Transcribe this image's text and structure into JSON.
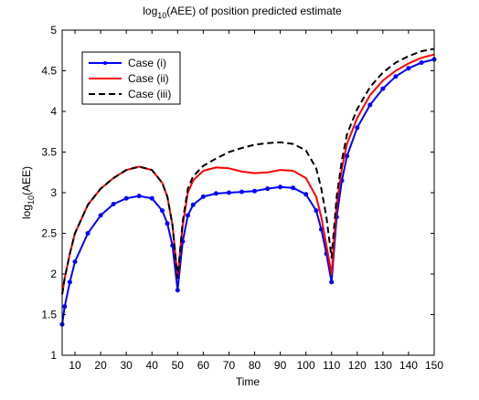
{
  "chart_data": {
    "type": "line",
    "title": "log10(AEE) of position predicted estimate",
    "title_parts": {
      "pre": "log",
      "sub": "10",
      "post": "(AEE) of position predicted estimate"
    },
    "xlabel": "Time",
    "ylabel": "log10(AEE)",
    "ylabel_parts": {
      "pre": "log",
      "sub": "10",
      "post": "(AEE)"
    },
    "xlim": [
      5,
      150
    ],
    "ylim": [
      1,
      5
    ],
    "xticks": [
      10,
      20,
      30,
      40,
      50,
      60,
      70,
      80,
      90,
      100,
      110,
      120,
      130,
      140,
      150
    ],
    "yticks": [
      1,
      1.5,
      2,
      2.5,
      3,
      3.5,
      4,
      4.5,
      5
    ],
    "grid": false,
    "legend_position": "top-left",
    "x": [
      5,
      6,
      8,
      10,
      15,
      20,
      25,
      30,
      35,
      40,
      44,
      46,
      48,
      50,
      52,
      54,
      56,
      60,
      65,
      70,
      75,
      80,
      85,
      90,
      95,
      100,
      104,
      106,
      108,
      110,
      112,
      114,
      116,
      120,
      125,
      130,
      135,
      140,
      145,
      150
    ],
    "series": [
      {
        "name": "Case (i)",
        "color": "#0000ff",
        "style": "solid-marker",
        "values": [
          1.38,
          1.6,
          1.9,
          2.15,
          2.5,
          2.72,
          2.86,
          2.93,
          2.96,
          2.93,
          2.78,
          2.62,
          2.35,
          1.8,
          2.4,
          2.72,
          2.85,
          2.95,
          2.99,
          3.0,
          3.01,
          3.02,
          3.05,
          3.07,
          3.06,
          2.98,
          2.78,
          2.55,
          2.25,
          1.9,
          2.7,
          3.15,
          3.45,
          3.8,
          4.08,
          4.28,
          4.43,
          4.53,
          4.6,
          4.64
        ]
      },
      {
        "name": "Case (ii)",
        "color": "#ff0000",
        "style": "solid",
        "values": [
          1.75,
          1.95,
          2.25,
          2.5,
          2.85,
          3.05,
          3.18,
          3.28,
          3.32,
          3.28,
          3.12,
          2.95,
          2.6,
          1.95,
          2.6,
          3.0,
          3.15,
          3.27,
          3.31,
          3.3,
          3.26,
          3.24,
          3.25,
          3.28,
          3.27,
          3.18,
          2.95,
          2.7,
          2.35,
          2.0,
          2.85,
          3.3,
          3.6,
          3.92,
          4.2,
          4.38,
          4.5,
          4.59,
          4.66,
          4.7
        ]
      },
      {
        "name": "Case (iii)",
        "color": "#000000",
        "style": "dashed",
        "values": [
          1.75,
          1.95,
          2.25,
          2.5,
          2.85,
          3.05,
          3.18,
          3.28,
          3.32,
          3.28,
          3.12,
          2.95,
          2.6,
          1.95,
          2.65,
          3.05,
          3.2,
          3.33,
          3.42,
          3.5,
          3.55,
          3.59,
          3.61,
          3.62,
          3.6,
          3.52,
          3.3,
          3.05,
          2.7,
          2.2,
          2.95,
          3.4,
          3.72,
          4.03,
          4.3,
          4.48,
          4.6,
          4.68,
          4.74,
          4.77
        ]
      }
    ]
  }
}
